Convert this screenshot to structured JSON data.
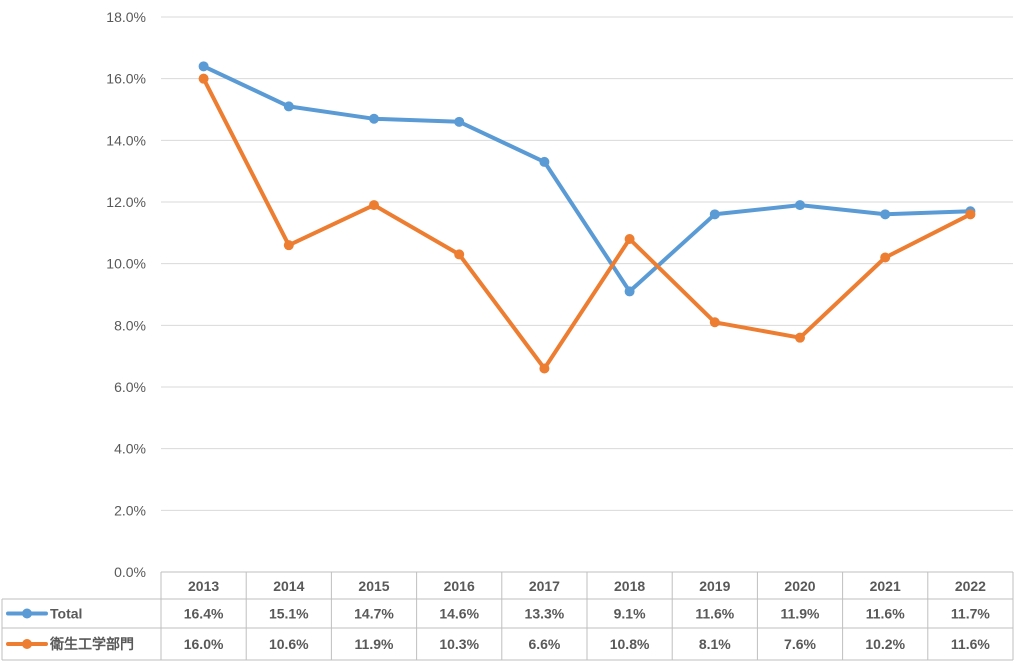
{
  "chart_data": {
    "type": "line",
    "title": "",
    "xlabel": "",
    "ylabel": "",
    "categories": [
      "2013",
      "2014",
      "2015",
      "2016",
      "2017",
      "2018",
      "2019",
      "2020",
      "2021",
      "2022"
    ],
    "series": [
      {
        "name": "Total",
        "color": "#5B9BD5",
        "values": [
          16.4,
          15.1,
          14.7,
          14.6,
          13.3,
          9.1,
          11.6,
          11.9,
          11.6,
          11.7
        ],
        "labels": [
          "16.4%",
          "15.1%",
          "14.7%",
          "14.6%",
          "13.3%",
          "9.1%",
          "11.6%",
          "11.9%",
          "11.6%",
          "11.7%"
        ]
      },
      {
        "name": "衛生工学部門",
        "color": "#ED7D31",
        "values": [
          16.0,
          10.6,
          11.9,
          10.3,
          6.6,
          10.8,
          8.1,
          7.6,
          10.2,
          11.6
        ],
        "labels": [
          "16.0%",
          "10.6%",
          "11.9%",
          "10.3%",
          "6.6%",
          "10.8%",
          "8.1%",
          "7.6%",
          "10.2%",
          "11.6%"
        ]
      }
    ],
    "ylim": [
      0,
      18
    ],
    "y_ticks": [
      "0.0%",
      "2.0%",
      "4.0%",
      "6.0%",
      "8.0%",
      "10.0%",
      "12.0%",
      "14.0%",
      "16.0%",
      "18.0%"
    ],
    "grid": true,
    "legend": "data-table"
  }
}
